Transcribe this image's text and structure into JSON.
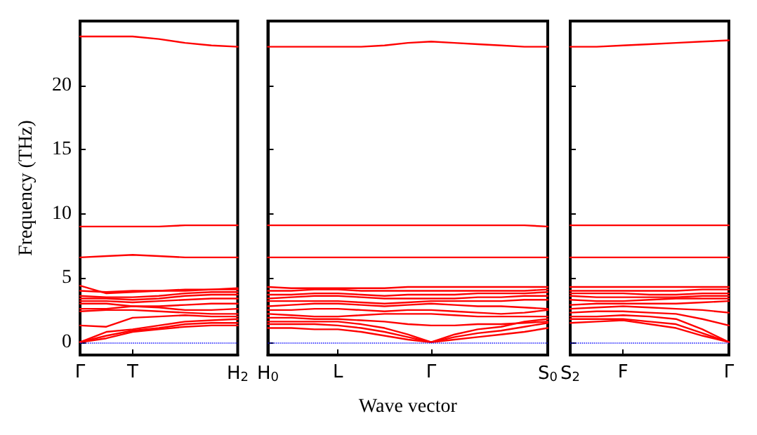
{
  "chart_data": [
    {
      "type": "line",
      "ylabel": "Frequency (THz)",
      "categories": [
        "Γ",
        null,
        "T",
        null,
        null,
        null,
        "H$_{2}$"
      ],
      "ylim": [
        -1,
        25
      ],
      "yticks": [
        0,
        5,
        10,
        15,
        20
      ],
      "line_style": "solid",
      "marker": "none",
      "grid": false,
      "ref_lines": [
        {
          "axis": "y",
          "value": 0,
          "color": "#0000ff",
          "line_style": "dotted"
        }
      ],
      "series": [
        {
          "color": "#ff0000",
          "values": [
            23.8,
            23.8,
            23.8,
            23.6,
            23.3,
            23.1,
            23.0
          ]
        },
        {
          "color": "#ff0000",
          "values": [
            9.0,
            9.0,
            9.0,
            9.0,
            9.1,
            9.1,
            9.1
          ]
        },
        {
          "color": "#ff0000",
          "values": [
            6.6,
            6.7,
            6.8,
            6.7,
            6.6,
            6.6,
            6.6
          ]
        },
        {
          "color": "#ff0000",
          "values": [
            4.4,
            3.8,
            3.9,
            4.0,
            4.0,
            4.1,
            4.2
          ]
        },
        {
          "color": "#ff0000",
          "values": [
            4.0,
            3.9,
            4.0,
            4.0,
            4.1,
            4.1,
            4.1
          ]
        },
        {
          "color": "#ff0000",
          "values": [
            3.6,
            3.5,
            3.5,
            3.6,
            3.8,
            3.9,
            3.9
          ]
        },
        {
          "color": "#ff0000",
          "values": [
            3.4,
            3.4,
            3.3,
            3.4,
            3.6,
            3.7,
            3.7
          ]
        },
        {
          "color": "#ff0000",
          "values": [
            3.2,
            3.2,
            3.1,
            3.2,
            3.3,
            3.4,
            3.4
          ]
        },
        {
          "color": "#ff0000",
          "values": [
            3.0,
            3.0,
            2.8,
            2.8,
            2.9,
            3.0,
            3.0
          ]
        },
        {
          "color": "#ff0000",
          "values": [
            2.6,
            2.6,
            2.8,
            2.7,
            2.5,
            2.5,
            2.6
          ]
        },
        {
          "color": "#ff0000",
          "values": [
            2.4,
            2.5,
            2.5,
            2.4,
            2.3,
            2.2,
            2.2
          ]
        },
        {
          "color": "#ff0000",
          "values": [
            1.3,
            1.2,
            1.9,
            2.0,
            2.1,
            2.0,
            2.0
          ]
        },
        {
          "color": "#ff0000",
          "values": [
            0,
            0.8,
            1.0,
            1.3,
            1.6,
            1.7,
            1.8
          ]
        },
        {
          "color": "#ff0000",
          "values": [
            0,
            0.5,
            0.9,
            1.1,
            1.4,
            1.5,
            1.5
          ]
        },
        {
          "color": "#ff0000",
          "values": [
            0,
            0.3,
            0.8,
            1.0,
            1.2,
            1.3,
            1.3
          ]
        }
      ]
    },
    {
      "type": "line",
      "xlabel": "Wave vector",
      "categories": [
        "H$_{0}$",
        null,
        null,
        "L",
        null,
        null,
        null,
        "Γ",
        null,
        null,
        null,
        null,
        "S$_{0}$"
      ],
      "ylim": [
        -1,
        25
      ],
      "yticks": [
        0,
        5,
        10,
        15,
        20
      ],
      "tick_labels": "x",
      "line_style": "solid",
      "marker": "none",
      "grid": false,
      "ref_lines": [
        {
          "axis": "y",
          "value": 0,
          "color": "#0000ff",
          "line_style": "dotted"
        }
      ],
      "series": [
        {
          "color": "#ff0000",
          "values": [
            23.0,
            23.0,
            23.0,
            23.0,
            23.0,
            23.1,
            23.3,
            23.4,
            23.3,
            23.2,
            23.1,
            23.0,
            23.0
          ]
        },
        {
          "color": "#ff0000",
          "values": [
            9.1,
            9.1,
            9.1,
            9.1,
            9.1,
            9.1,
            9.1,
            9.1,
            9.1,
            9.1,
            9.1,
            9.1,
            9.0
          ]
        },
        {
          "color": "#ff0000",
          "values": [
            6.6,
            6.6,
            6.6,
            6.6,
            6.6,
            6.6,
            6.6,
            6.6,
            6.6,
            6.6,
            6.6,
            6.6,
            6.6
          ]
        },
        {
          "color": "#ff0000",
          "values": [
            4.3,
            4.2,
            4.2,
            4.2,
            4.2,
            4.2,
            4.3,
            4.3,
            4.3,
            4.3,
            4.3,
            4.3,
            4.3
          ]
        },
        {
          "color": "#ff0000",
          "values": [
            4.0,
            4.0,
            4.1,
            4.1,
            4.0,
            4.0,
            4.0,
            4.0,
            4.0,
            4.0,
            4.0,
            4.0,
            4.1
          ]
        },
        {
          "color": "#ff0000",
          "values": [
            3.7,
            3.7,
            3.8,
            3.8,
            3.7,
            3.6,
            3.7,
            3.7,
            3.7,
            3.8,
            3.8,
            3.8,
            3.9
          ]
        },
        {
          "color": "#ff0000",
          "values": [
            3.4,
            3.5,
            3.6,
            3.6,
            3.5,
            3.4,
            3.4,
            3.4,
            3.4,
            3.5,
            3.5,
            3.6,
            3.6
          ]
        },
        {
          "color": "#ff0000",
          "values": [
            3.2,
            3.2,
            3.2,
            3.2,
            3.1,
            3.0,
            3.1,
            3.2,
            3.2,
            3.2,
            3.2,
            3.3,
            3.3
          ]
        },
        {
          "color": "#ff0000",
          "values": [
            2.8,
            2.9,
            3.0,
            3.0,
            2.9,
            2.8,
            2.9,
            3.0,
            2.9,
            2.8,
            2.8,
            2.7,
            2.6
          ]
        },
        {
          "color": "#ff0000",
          "values": [
            2.5,
            2.5,
            2.6,
            2.6,
            2.5,
            2.4,
            2.5,
            2.5,
            2.4,
            2.3,
            2.2,
            2.3,
            2.5
          ]
        },
        {
          "color": "#ff0000",
          "values": [
            2.2,
            2.1,
            2.0,
            2.0,
            2.1,
            2.2,
            2.2,
            2.2,
            2.1,
            2.0,
            2.0,
            2.0,
            2.0
          ]
        },
        {
          "color": "#ff0000",
          "values": [
            1.9,
            1.9,
            1.8,
            1.8,
            1.7,
            1.6,
            1.4,
            1.3,
            1.3,
            1.4,
            1.4,
            1.5,
            1.6
          ]
        },
        {
          "color": "#ff0000",
          "values": [
            1.6,
            1.6,
            1.6,
            1.6,
            1.4,
            1.1,
            0.6,
            0,
            0.6,
            1.0,
            1.2,
            1.6,
            1.8
          ]
        },
        {
          "color": "#ff0000",
          "values": [
            1.4,
            1.4,
            1.4,
            1.3,
            1.1,
            0.8,
            0.4,
            0,
            0.4,
            0.7,
            0.9,
            1.2,
            1.5
          ]
        },
        {
          "color": "#ff0000",
          "values": [
            1.1,
            1.1,
            1.0,
            1.0,
            0.8,
            0.5,
            0.2,
            0,
            0.2,
            0.4,
            0.6,
            0.8,
            1.1
          ]
        }
      ]
    },
    {
      "type": "line",
      "categories": [
        "S$_{2}$",
        null,
        "F",
        null,
        null,
        null,
        "Γ"
      ],
      "ylim": [
        -1,
        25
      ],
      "yticks": [
        0,
        5,
        10,
        15,
        20
      ],
      "tick_labels": "x",
      "line_style": "solid",
      "marker": "none",
      "grid": false,
      "ref_lines": [
        {
          "axis": "y",
          "value": 0,
          "color": "#0000ff",
          "line_style": "dotted"
        }
      ],
      "series": [
        {
          "color": "#ff0000",
          "values": [
            23.0,
            23.0,
            23.1,
            23.2,
            23.3,
            23.4,
            23.5
          ]
        },
        {
          "color": "#ff0000",
          "values": [
            9.1,
            9.1,
            9.1,
            9.1,
            9.1,
            9.1,
            9.1
          ]
        },
        {
          "color": "#ff0000",
          "values": [
            6.6,
            6.6,
            6.6,
            6.6,
            6.6,
            6.6,
            6.6
          ]
        },
        {
          "color": "#ff0000",
          "values": [
            4.3,
            4.3,
            4.3,
            4.3,
            4.3,
            4.3,
            4.3
          ]
        },
        {
          "color": "#ff0000",
          "values": [
            4.0,
            4.0,
            4.0,
            4.0,
            4.0,
            4.1,
            4.1
          ]
        },
        {
          "color": "#ff0000",
          "values": [
            3.8,
            3.8,
            3.8,
            3.7,
            3.7,
            3.8,
            3.8
          ]
        },
        {
          "color": "#ff0000",
          "values": [
            3.6,
            3.5,
            3.5,
            3.5,
            3.5,
            3.6,
            3.6
          ]
        },
        {
          "color": "#ff0000",
          "values": [
            3.3,
            3.2,
            3.2,
            3.3,
            3.4,
            3.4,
            3.4
          ]
        },
        {
          "color": "#ff0000",
          "values": [
            2.9,
            3.0,
            3.0,
            3.0,
            3.0,
            3.1,
            3.2
          ]
        },
        {
          "color": "#ff0000",
          "values": [
            2.6,
            2.7,
            2.8,
            2.7,
            2.6,
            2.5,
            2.3
          ]
        },
        {
          "color": "#ff0000",
          "values": [
            2.3,
            2.4,
            2.4,
            2.3,
            2.2,
            1.8,
            1.3
          ]
        },
        {
          "color": "#ff0000",
          "values": [
            2.0,
            2.0,
            2.1,
            2.0,
            1.8,
            1.0,
            0
          ]
        },
        {
          "color": "#ff0000",
          "values": [
            1.8,
            1.8,
            1.8,
            1.6,
            1.4,
            0.7,
            0
          ]
        },
        {
          "color": "#ff0000",
          "values": [
            1.5,
            1.6,
            1.7,
            1.4,
            1.1,
            0.5,
            0
          ]
        }
      ]
    }
  ]
}
